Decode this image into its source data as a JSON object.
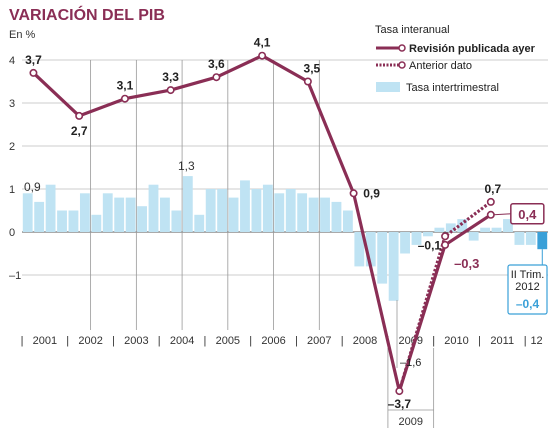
{
  "title": "VARIACIÓN DEL PIB",
  "unit_label": "En %",
  "chart_data": {
    "type": "bar+line",
    "ylim": [
      -3.7,
      4.3
    ],
    "yticks": [
      "4",
      "3",
      "2",
      "1",
      "0",
      "–1"
    ],
    "ytick_values": [
      4,
      3,
      2,
      1,
      0,
      -1
    ],
    "years": [
      "2001",
      "2002",
      "2003",
      "2004",
      "2005",
      "2006",
      "2007",
      "2008",
      "2009",
      "2010",
      "2011",
      "12"
    ],
    "legend": {
      "title": "Tasa interanual",
      "revised": "Revisión publicada ayer",
      "previous": "Anterior dato",
      "quarterly": "Tasa intertrimestral"
    },
    "quarterly_bars": [
      0.9,
      0.7,
      1.1,
      0.5,
      0.5,
      0.9,
      0.4,
      0.9,
      0.8,
      0.8,
      0.6,
      1.1,
      0.8,
      0.5,
      1.3,
      0.4,
      1.0,
      1.0,
      0.8,
      1.2,
      1.0,
      1.1,
      0.9,
      1.0,
      0.9,
      0.8,
      0.8,
      0.7,
      0.5,
      -0.8,
      -0.8,
      -1.2,
      -1.6,
      -0.5,
      -0.3,
      -0.1,
      0.1,
      0.2,
      0.3,
      -0.2,
      0.1,
      0.1,
      0.3,
      -0.3,
      -0.3,
      -0.4
    ],
    "annual_revised": [
      {
        "x": 2001,
        "y": 3.7,
        "label": "3,7"
      },
      {
        "x": 2002,
        "y": 2.7,
        "label": "2,7"
      },
      {
        "x": 2003,
        "y": 3.1,
        "label": "3,1"
      },
      {
        "x": 2004,
        "y": 3.3,
        "label": "3,3"
      },
      {
        "x": 2005,
        "y": 3.6,
        "label": "3,6"
      },
      {
        "x": 2006,
        "y": 4.1,
        "label": "4,1"
      },
      {
        "x": 2007,
        "y": 3.5,
        "label": "3,5"
      },
      {
        "x": 2008,
        "y": 0.9,
        "label": "0,9"
      },
      {
        "x": 2009,
        "y": -3.7,
        "label": "–3,7"
      },
      {
        "x": 2010,
        "y": -0.3,
        "label": "–0,3"
      },
      {
        "x": 2011,
        "y": 0.4,
        "label": "0,4"
      }
    ],
    "annual_previous": [
      {
        "x": 2009,
        "y": -3.7
      },
      {
        "x": 2010,
        "y": -0.1,
        "label": "–0,1"
      },
      {
        "x": 2011,
        "y": 0.7,
        "label": "0,7"
      }
    ],
    "annotations": {
      "bar_2001": "0,9",
      "bar_2004": "1,3",
      "bar_2009": "–1,6",
      "q2_2012_lines": [
        "II Trim.",
        "2012"
      ],
      "q2_2012_value": "–0,4"
    }
  }
}
